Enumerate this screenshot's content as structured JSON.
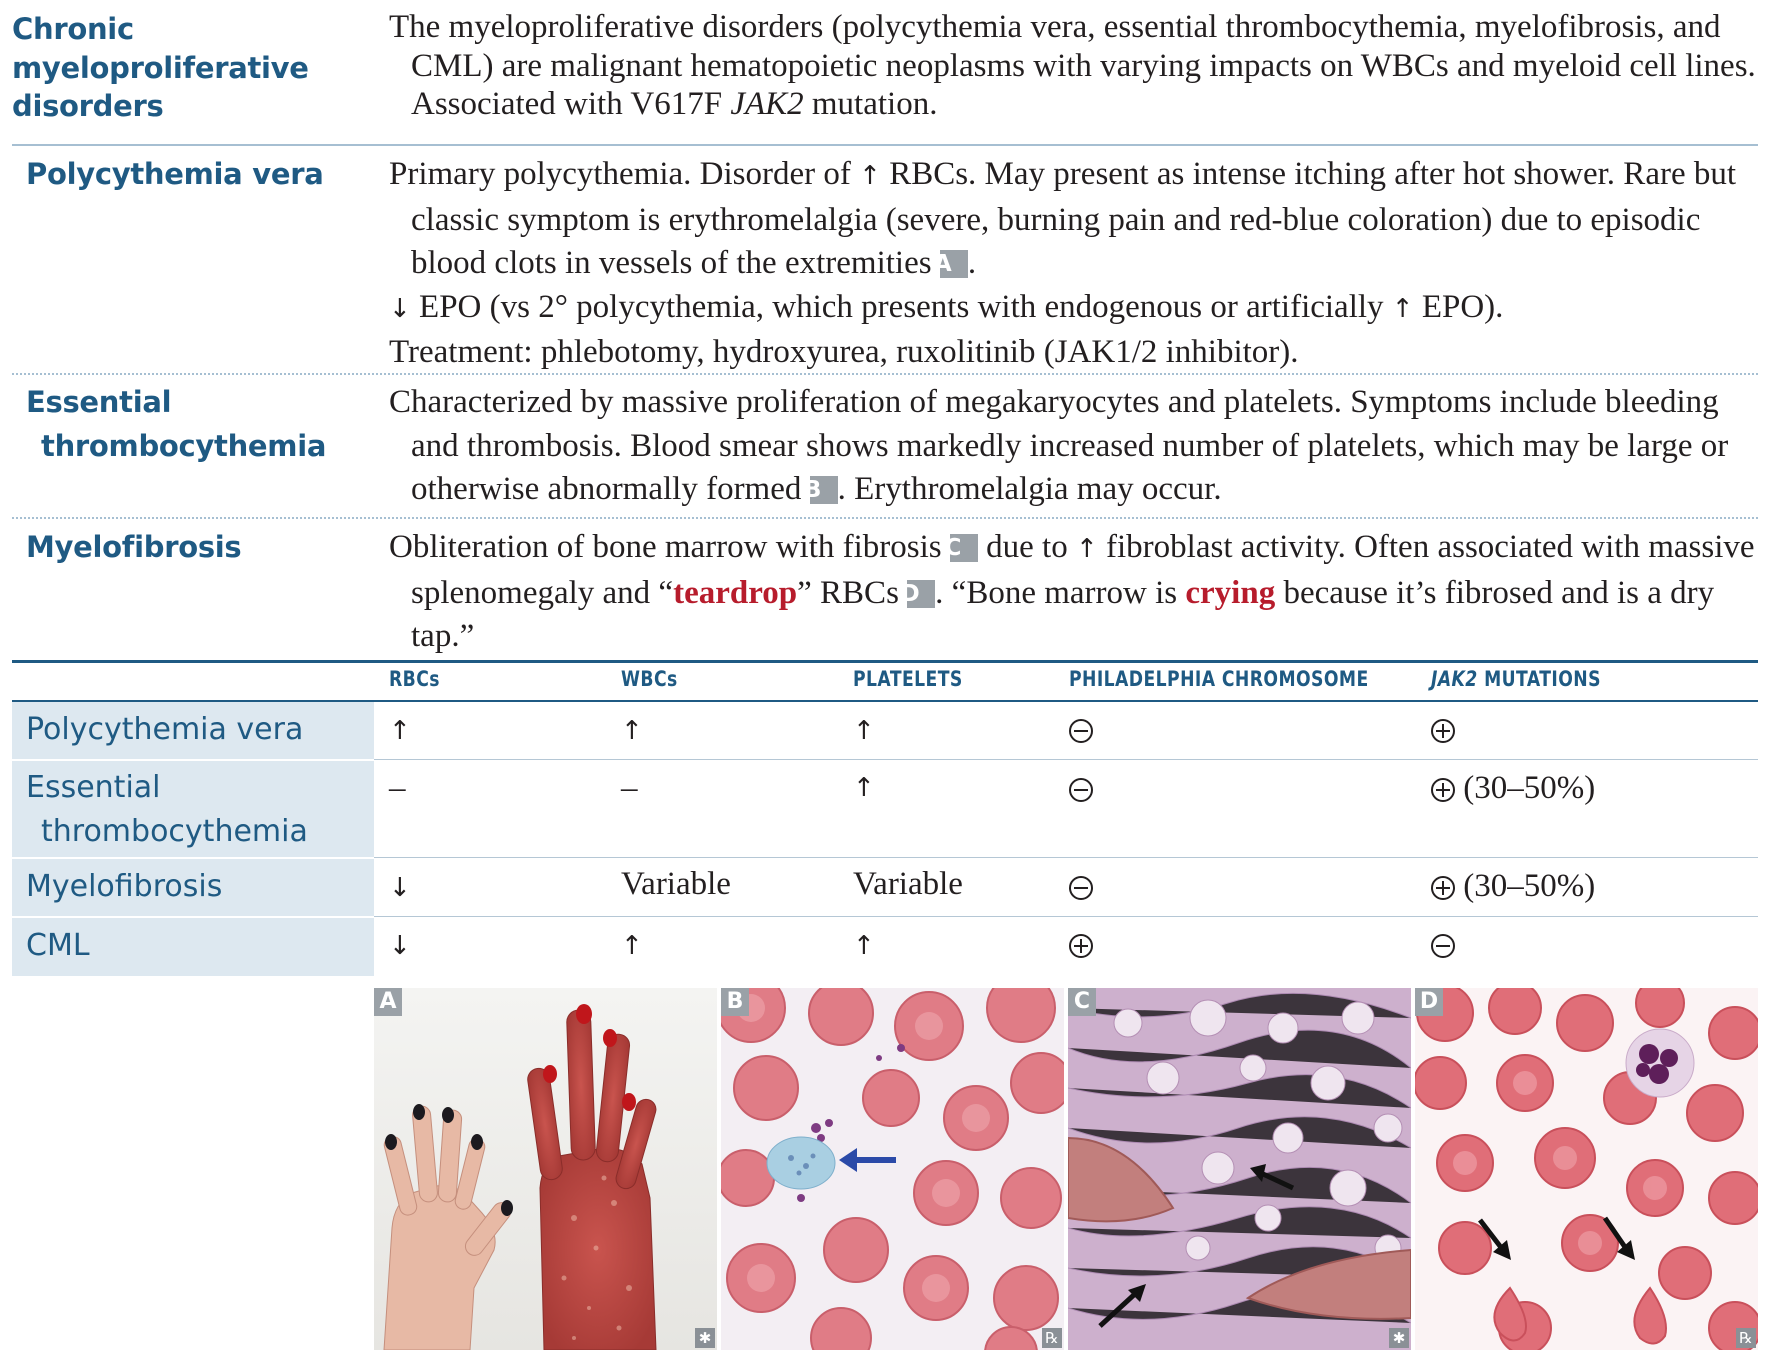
{
  "entries": {
    "cmd": {
      "heading": [
        "Chronic",
        "myeloproliferative",
        "disorders"
      ],
      "text_before_italic": "The myeloproliferative disorders (polycythemia vera, essential thrombocythemia, myelofibrosis, and CML) are malignant hematopoietic neoplasms with varying impacts on WBCs and myeloid cell lines. Associated with V617F ",
      "italic": "JAK2",
      "text_after_italic": " mutation."
    },
    "pv": {
      "heading": "Polycythemia vera",
      "p1_a": "Primary polycythemia. Disorder of ",
      "p1_b": " RBCs. May present as intense itching after hot shower. Rare but classic symptom is erythromelalgia (severe, burning pain and red-blue coloration) due to episodic blood clots in vessels of the extremities ",
      "p1_badge": "A",
      "p1_end": ".",
      "p2_a": " EPO (vs 2° polycythemia, which presents with endogenous or artificially ",
      "p2_b": " EPO).",
      "p3": "Treatment: phlebotomy, hydroxyurea, ruxolitinib (JAK1/2 inhibitor)."
    },
    "et": {
      "heading": [
        "Essential",
        "thrombocythemia"
      ],
      "text_a": "Characterized by massive proliferation of megakaryocytes and platelets. Symptoms include bleeding and thrombosis. Blood smear shows markedly increased number of platelets, which may be large or otherwise abnormally formed ",
      "badge": "B",
      "text_b": ". Erythromelalgia may occur."
    },
    "mf": {
      "heading": "Myelofibrosis",
      "a": "Obliteration of bone marrow with fibrosis ",
      "badge_c": "C",
      "b": " due to ",
      "c": " fibroblast activity. Often associated with massive splenomegaly and “",
      "teardrop": "teardrop",
      "d": "” RBCs ",
      "badge_d": "D",
      "e": ". “Bone marrow is ",
      "crying": "crying",
      "f": " because it’s fibrosed and is a dry tap.”"
    }
  },
  "arrows": {
    "up": "↑",
    "down": "↓"
  },
  "table": {
    "headers": {
      "rbcs": "RBCs",
      "wbcs": "WBCs",
      "platelets": "PLATELETS",
      "philadelphia": "PHILADELPHIA CHROMOSOME",
      "jak2_italic": "JAK2",
      "jak2_rest": " MUTATIONS"
    },
    "rows": [
      {
        "label": "Polycythemia vera",
        "rbcs": "↑",
        "wbcs": "↑",
        "platelets": "↑",
        "philadelphia": "minus",
        "jak2": "plus",
        "jak2_text": ""
      },
      {
        "label": [
          "Essential",
          "thrombocythemia"
        ],
        "rbcs": "–",
        "wbcs": "–",
        "platelets": "↑",
        "philadelphia": "minus",
        "jak2": "plus",
        "jak2_text": " (30–50%)"
      },
      {
        "label": "Myelofibrosis",
        "rbcs": "↓",
        "wbcs": "Variable",
        "platelets": "Variable",
        "philadelphia": "minus",
        "jak2": "plus",
        "jak2_text": " (30–50%)"
      },
      {
        "label": "CML",
        "rbcs": "↓",
        "wbcs": "↑",
        "platelets": "↑",
        "philadelphia": "plus",
        "jak2": "minus",
        "jak2_text": ""
      }
    ]
  },
  "images": {
    "a": {
      "badge": "A",
      "corner": "✱"
    },
    "b": {
      "badge": "B",
      "corner": "℞"
    },
    "c": {
      "badge": "C",
      "corner": "✱"
    },
    "d": {
      "badge": "D",
      "corner": "℞"
    }
  },
  "colors": {
    "heading_blue": "#1f5a83",
    "label_bg": "#dde8f0",
    "emphasis_red": "#b71c2c",
    "badge_gray": "#9aa1a7"
  }
}
